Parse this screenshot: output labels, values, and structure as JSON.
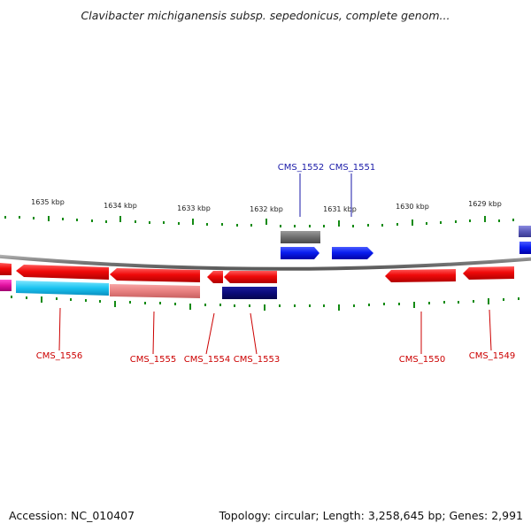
{
  "title": "Clavibacter michiganensis subsp. sepedonicus, complete genom...",
  "footer": {
    "accession": "Accession: NC_010407",
    "summary": "Topology: circular; Length: 3,258,645 bp; Genes: 2,991"
  },
  "colors": {
    "forward_gene": "#0a1ef0",
    "reverse_gene": "#f00a0a",
    "gray_feature": "#6e6e6e",
    "tick": "#138a13",
    "backbone": "#8a8a8a",
    "label_reverse": "#cc0000",
    "label_forward": "#1a1aa8"
  },
  "kbp_ticks": [
    {
      "label": "1635 kbp"
    },
    {
      "label": "1634 kbp"
    },
    {
      "label": "1633 kbp"
    },
    {
      "label": "1632 kbp"
    },
    {
      "label": "1631 kbp"
    },
    {
      "label": "1630 kbp"
    },
    {
      "label": "1629 kbp"
    }
  ],
  "genes": [
    {
      "id": "CMS_1552",
      "strand": "forward"
    },
    {
      "id": "CMS_1551",
      "strand": "forward"
    },
    {
      "id": "CMS_1556",
      "strand": "reverse"
    },
    {
      "id": "CMS_1555",
      "strand": "reverse"
    },
    {
      "id": "CMS_1554",
      "strand": "reverse"
    },
    {
      "id": "CMS_1553",
      "strand": "reverse"
    },
    {
      "id": "CMS_1550",
      "strand": "reverse"
    },
    {
      "id": "CMS_1549",
      "strand": "reverse"
    }
  ]
}
